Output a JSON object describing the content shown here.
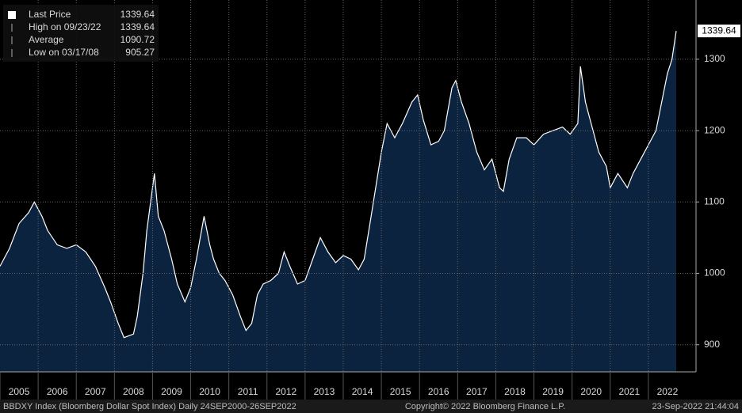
{
  "chart_data": {
    "type": "area",
    "legend": [
      {
        "name": "Last Price",
        "value": 1339.64
      },
      {
        "name": "High on 09/23/22",
        "value": 1339.64
      },
      {
        "name": "Average",
        "value": 1090.72
      },
      {
        "name": "Low on 03/17/08",
        "value": 905.27
      }
    ],
    "series": [
      {
        "name": "Last Price",
        "color": "#ffffff",
        "fill": "#0c2340",
        "x": [
          2005.0,
          2005.25,
          2005.5,
          2005.75,
          2005.9,
          2006.1,
          2006.25,
          2006.5,
          2006.75,
          2007.0,
          2007.25,
          2007.5,
          2007.75,
          2007.9,
          2008.1,
          2008.25,
          2008.5,
          2008.6,
          2008.75,
          2008.85,
          2008.95,
          2009.05,
          2009.15,
          2009.3,
          2009.5,
          2009.65,
          2009.85,
          2010.0,
          2010.15,
          2010.35,
          2010.5,
          2010.6,
          2010.75,
          2010.9,
          2011.1,
          2011.3,
          2011.45,
          2011.6,
          2011.75,
          2011.9,
          2012.1,
          2012.3,
          2012.45,
          2012.6,
          2012.8,
          2013.0,
          2013.2,
          2013.4,
          2013.6,
          2013.8,
          2014.0,
          2014.2,
          2014.4,
          2014.55,
          2014.7,
          2014.85,
          2015.0,
          2015.15,
          2015.35,
          2015.55,
          2015.8,
          2015.95,
          2016.1,
          2016.3,
          2016.5,
          2016.65,
          2016.85,
          2016.95,
          2017.1,
          2017.3,
          2017.5,
          2017.7,
          2017.9,
          2018.1,
          2018.2,
          2018.35,
          2018.55,
          2018.8,
          2019.0,
          2019.25,
          2019.5,
          2019.75,
          2019.95,
          2020.15,
          2020.22,
          2020.35,
          2020.5,
          2020.7,
          2020.9,
          2021.0,
          2021.2,
          2021.45,
          2021.6,
          2021.8,
          2022.0,
          2022.2,
          2022.35,
          2022.5,
          2022.62,
          2022.73
        ],
        "values": [
          1010,
          1035,
          1070,
          1085,
          1100,
          1080,
          1060,
          1040,
          1035,
          1040,
          1030,
          1010,
          980,
          960,
          930,
          910,
          915,
          940,
          1000,
          1060,
          1100,
          1140,
          1080,
          1060,
          1020,
          985,
          960,
          980,
          1020,
          1080,
          1040,
          1020,
          1000,
          990,
          970,
          940,
          920,
          930,
          970,
          985,
          990,
          1000,
          1030,
          1010,
          985,
          990,
          1020,
          1050,
          1030,
          1015,
          1025,
          1020,
          1005,
          1020,
          1070,
          1120,
          1170,
          1210,
          1190,
          1210,
          1240,
          1250,
          1215,
          1180,
          1185,
          1200,
          1260,
          1270,
          1240,
          1210,
          1170,
          1145,
          1160,
          1120,
          1115,
          1160,
          1190,
          1190,
          1180,
          1195,
          1200,
          1205,
          1195,
          1210,
          1290,
          1240,
          1210,
          1170,
          1150,
          1120,
          1140,
          1120,
          1140,
          1160,
          1180,
          1200,
          1240,
          1280,
          1300,
          1339.64
        ]
      }
    ],
    "xlim": [
      2005,
      2023.25
    ],
    "xticks": [
      2005,
      2006,
      2007,
      2008,
      2009,
      2010,
      2011,
      2012,
      2013,
      2014,
      2015,
      2016,
      2017,
      2018,
      2019,
      2020,
      2021,
      2022
    ],
    "ylim": [
      862,
      1383
    ],
    "yticks": [
      900,
      1000,
      1100,
      1200,
      1300
    ],
    "grid": true,
    "footer": {
      "left": "BBDXY Index (Bloomberg Dollar Spot Index)  Daily 24SEP2000-26SEP2022",
      "center": "Copyright© 2022 Bloomberg Finance L.P.",
      "right": "23-Sep-2022 21:44:04"
    }
  }
}
